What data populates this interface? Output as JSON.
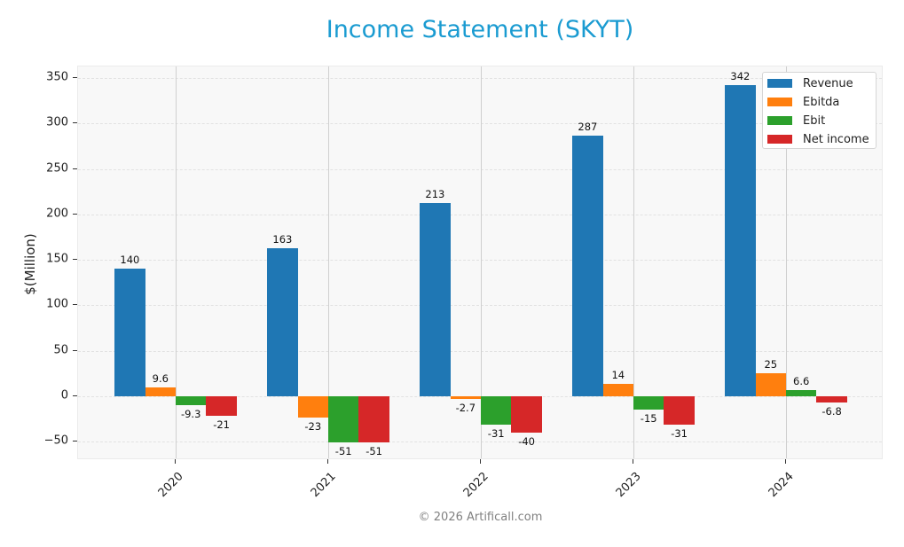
{
  "title": "Income Statement (SKYT)",
  "footer": "© 2026 Artificall.com",
  "y_axis": {
    "label": "$(Million)",
    "ticks": [
      "350",
      "300",
      "250",
      "200",
      "150",
      "100",
      "50",
      "0",
      "−50"
    ]
  },
  "x_axis": {
    "ticks": [
      "2020",
      "2021",
      "2022",
      "2023",
      "2024"
    ]
  },
  "legend": {
    "items": [
      {
        "label": "Revenue",
        "color": "#1f77b4"
      },
      {
        "label": "Ebitda",
        "color": "#ff7f0e"
      },
      {
        "label": "Ebit",
        "color": "#2ca02c"
      },
      {
        "label": "Net income",
        "color": "#d62728"
      }
    ]
  },
  "labels": {
    "2020": [
      "140",
      "9.6",
      "-9.3",
      "-21"
    ],
    "2021": [
      "163",
      "-23",
      "-51",
      "-51"
    ],
    "2022": [
      "213",
      "-2.7",
      "-31",
      "-40"
    ],
    "2023": [
      "287",
      "14",
      "-15",
      "-31"
    ],
    "2024": [
      "342",
      "25",
      "6.6",
      "-6.8"
    ]
  },
  "chart_data": {
    "type": "bar",
    "title": "Income Statement (SKYT)",
    "xlabel": "",
    "ylabel": "$(Million)",
    "ylim": [
      -70,
      362
    ],
    "grid": true,
    "legend_position": "upper right",
    "categories": [
      "2020",
      "2021",
      "2022",
      "2023",
      "2024"
    ],
    "series": [
      {
        "name": "Revenue",
        "color": "#1f77b4",
        "values": [
          140,
          163,
          213,
          287,
          342
        ]
      },
      {
        "name": "Ebitda",
        "color": "#ff7f0e",
        "values": [
          9.6,
          -23,
          -2.7,
          14,
          25
        ]
      },
      {
        "name": "Ebit",
        "color": "#2ca02c",
        "values": [
          -9.3,
          -51,
          -31,
          -15,
          6.6
        ]
      },
      {
        "name": "Net income",
        "color": "#d62728",
        "values": [
          -21,
          -51,
          -40,
          -31,
          -6.8
        ]
      }
    ],
    "annotations": [
      "© 2026 Artificall.com"
    ]
  }
}
